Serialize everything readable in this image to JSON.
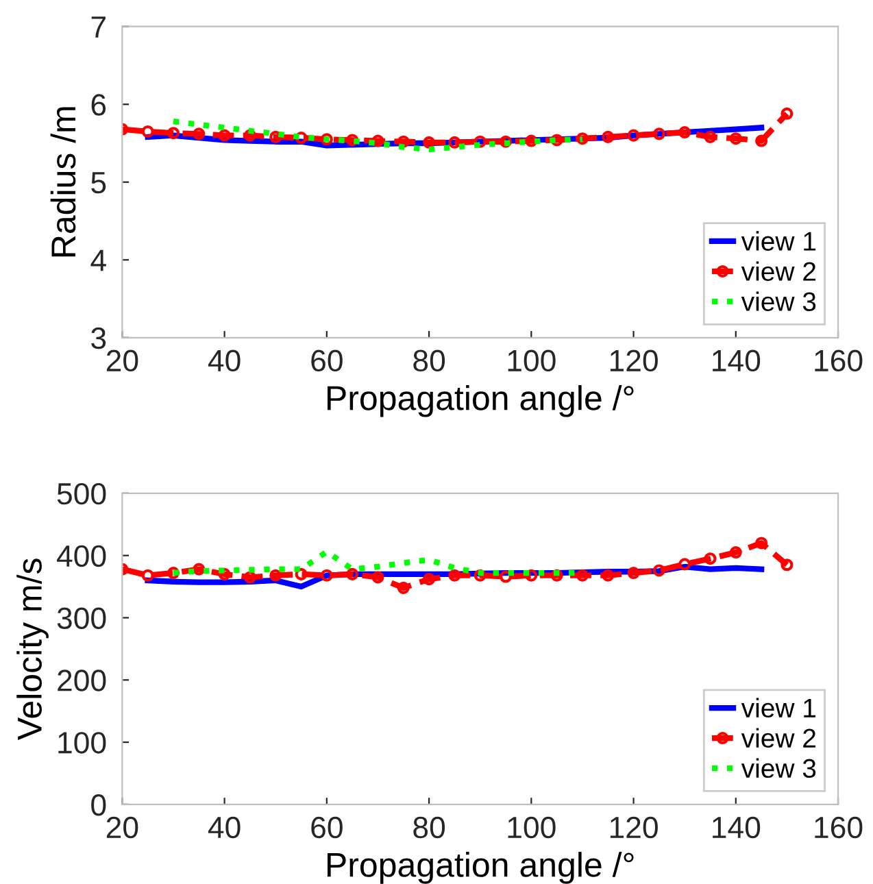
{
  "chart_data": [
    {
      "type": "line",
      "xlabel": "Propagation angle /°",
      "ylabel": "Radius /m",
      "xlim": [
        20,
        160
      ],
      "ylim": [
        3,
        7
      ],
      "xticks": [
        20,
        40,
        60,
        80,
        100,
        120,
        140,
        160
      ],
      "yticks": [
        3,
        4,
        5,
        6,
        7
      ],
      "grid": false,
      "legend": "bottom right",
      "series": [
        {
          "name": "view 1",
          "color": "#0000ff",
          "line_style": "solid",
          "marker": "none",
          "x": [
            25,
            30,
            35,
            40,
            45,
            50,
            55,
            60,
            65,
            70,
            75,
            80,
            85,
            90,
            95,
            100,
            105,
            110,
            115,
            120,
            125,
            130,
            135,
            140,
            145
          ],
          "values": [
            5.58,
            5.6,
            5.57,
            5.54,
            5.53,
            5.52,
            5.52,
            5.47,
            5.48,
            5.49,
            5.5,
            5.5,
            5.51,
            5.52,
            5.53,
            5.54,
            5.55,
            5.56,
            5.57,
            5.6,
            5.62,
            5.64,
            5.66,
            5.68,
            5.7
          ]
        },
        {
          "name": "view 2",
          "color": "#ff0000",
          "line_style": "dashed",
          "marker": "circle",
          "x": [
            20,
            25,
            30,
            35,
            40,
            45,
            50,
            55,
            60,
            65,
            70,
            75,
            80,
            85,
            90,
            95,
            100,
            105,
            110,
            115,
            120,
            125,
            130,
            135,
            140,
            145,
            150
          ],
          "values": [
            5.68,
            5.65,
            5.63,
            5.62,
            5.6,
            5.6,
            5.58,
            5.57,
            5.55,
            5.54,
            5.53,
            5.52,
            5.51,
            5.51,
            5.52,
            5.52,
            5.53,
            5.54,
            5.56,
            5.58,
            5.6,
            5.62,
            5.64,
            5.58,
            5.56,
            5.53,
            5.88
          ]
        },
        {
          "name": "view 3",
          "color": "#00ff00",
          "line_style": "dotted",
          "marker": "none",
          "x": [
            30,
            35,
            40,
            45,
            50,
            55,
            60,
            65,
            70,
            75,
            80,
            85,
            90,
            95,
            100,
            105,
            110
          ],
          "values": [
            5.78,
            5.74,
            5.7,
            5.66,
            5.62,
            5.58,
            5.55,
            5.53,
            5.5,
            5.45,
            5.42,
            5.45,
            5.48,
            5.5,
            5.52,
            5.54,
            5.55
          ]
        }
      ]
    },
    {
      "type": "line",
      "xlabel": "Propagation angle /°",
      "ylabel": "Velocity m/s",
      "xlim": [
        20,
        160
      ],
      "ylim": [
        0,
        500
      ],
      "xticks": [
        20,
        40,
        60,
        80,
        100,
        120,
        140,
        160
      ],
      "yticks": [
        0,
        100,
        200,
        300,
        400,
        500
      ],
      "grid": false,
      "legend": "bottom right",
      "series": [
        {
          "name": "view 1",
          "color": "#0000ff",
          "line_style": "solid",
          "marker": "none",
          "x": [
            25,
            30,
            35,
            40,
            45,
            50,
            55,
            60,
            65,
            70,
            75,
            80,
            85,
            90,
            95,
            100,
            105,
            110,
            115,
            120,
            125,
            130,
            135,
            140,
            145
          ],
          "values": [
            360,
            358,
            357,
            357,
            358,
            360,
            350,
            368,
            370,
            370,
            370,
            370,
            370,
            371,
            372,
            372,
            372,
            373,
            374,
            374,
            375,
            382,
            378,
            380,
            378
          ]
        },
        {
          "name": "view 2",
          "color": "#ff0000",
          "line_style": "dashed",
          "marker": "circle",
          "x": [
            20,
            25,
            30,
            35,
            40,
            45,
            50,
            55,
            60,
            65,
            70,
            75,
            80,
            85,
            90,
            95,
            100,
            105,
            110,
            115,
            120,
            125,
            130,
            135,
            140,
            145,
            150
          ],
          "values": [
            378,
            368,
            372,
            378,
            370,
            365,
            368,
            370,
            368,
            370,
            365,
            348,
            362,
            368,
            368,
            366,
            368,
            368,
            368,
            368,
            372,
            376,
            386,
            395,
            405,
            420,
            385
          ]
        },
        {
          "name": "view 3",
          "color": "#00ff00",
          "line_style": "dotted",
          "marker": "none",
          "x": [
            30,
            35,
            40,
            45,
            50,
            55,
            60,
            65,
            70,
            75,
            80,
            85,
            90,
            95,
            100,
            105,
            110
          ],
          "values": [
            372,
            375,
            376,
            377,
            378,
            378,
            406,
            378,
            382,
            388,
            393,
            380,
            372,
            372,
            372,
            372,
            372
          ]
        }
      ]
    }
  ]
}
